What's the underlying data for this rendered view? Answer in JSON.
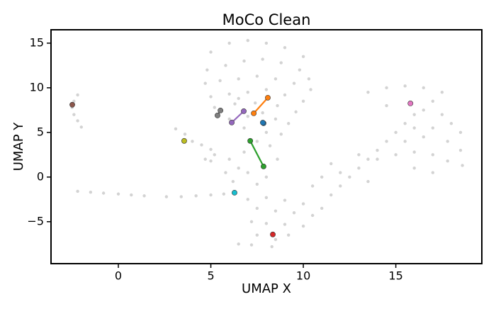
{
  "chart_data": {
    "type": "scatter",
    "title": "MoCo Clean",
    "x_label": "UMAP X",
    "y_label": "UMAP Y",
    "xlim": [
      -3.64,
      19.65
    ],
    "ylim": [
      -9.7,
      16.5
    ],
    "xticks": [
      0,
      5,
      10,
      15
    ],
    "yticks": [
      {
        "value": -5,
        "label": "−5"
      },
      0,
      5,
      10,
      15
    ],
    "background": {
      "color": "#d3d3d3",
      "x": [
        -2.2,
        -2.4,
        -2.5,
        -2.4,
        -2.2,
        -2,
        -2.2,
        -1.5,
        -0.8,
        0,
        0.7,
        1.4,
        2.6,
        3.4,
        4.2,
        5,
        5.7,
        3.1,
        3.6,
        4,
        4.5,
        5,
        5.2,
        5,
        4.7,
        5,
        6,
        7,
        8,
        9,
        10,
        4.8,
        5.8,
        6.8,
        7.8,
        8.8,
        9.8,
        10.3,
        4.7,
        5.5,
        6.5,
        7.5,
        8.5,
        9.5,
        10.4,
        5,
        6,
        7,
        8,
        9,
        10,
        5.2,
        6.3,
        7.4,
        8.6,
        9.6,
        6,
        7,
        8.5,
        9.2,
        6.8,
        8,
        8.8,
        7.5,
        8.2,
        6.5,
        7.8,
        6,
        6.5,
        7,
        6.2,
        7.5,
        8,
        8.6,
        5.8,
        6.8,
        7,
        8,
        9,
        10,
        11,
        7.5,
        8.5,
        9.5,
        10.5,
        7.2,
        8,
        9,
        10,
        7.5,
        8.5,
        9.2,
        8.3,
        6.5,
        7.2,
        11.5,
        12,
        12.5,
        13,
        13.5,
        14,
        14.5,
        15,
        15.5,
        16,
        14.5,
        13.5,
        14.5,
        15.5,
        16.5,
        17.5,
        17,
        16.5,
        17.5,
        18,
        18.5,
        17.8,
        18.5,
        18.6,
        17.8,
        17,
        16,
        15,
        14,
        13,
        12,
        11,
        10.5,
        15.5,
        16.5,
        17,
        16,
        13.5,
        16,
        17,
        11.5
      ],
      "y": [
        9.2,
        8.5,
        7.8,
        7,
        6.3,
        5.6,
        -1.6,
        -1.7,
        -1.8,
        -1.9,
        -2,
        -2.1,
        -2.2,
        -2.2,
        -2.1,
        -2,
        -1.9,
        5.4,
        4.8,
        4,
        3.6,
        3.1,
        2.5,
        1.8,
        2,
        14,
        15,
        15.3,
        15,
        14.5,
        13.5,
        12,
        12.5,
        13,
        13.2,
        12.8,
        12,
        11,
        10.5,
        10.8,
        11,
        11.3,
        11,
        10.5,
        9.8,
        9,
        9.3,
        9.5,
        9.8,
        9.2,
        8.5,
        7.8,
        8.2,
        8.3,
        8,
        7.3,
        6.5,
        6.8,
        6.5,
        6,
        5.5,
        5,
        4.8,
        4,
        3.5,
        8.8,
        7.2,
        2,
        1,
        0.5,
        -0.5,
        -0.8,
        0,
        2,
        0.5,
        2.8,
        -2.5,
        -2.3,
        -2.6,
        -3,
        -3.5,
        -3.5,
        -3.8,
        -4,
        -4.3,
        -5,
        -5.2,
        -5.3,
        -5.5,
        -6.5,
        -7,
        -6.5,
        -7.8,
        -7.5,
        -7.6,
        -2,
        -1,
        0,
        1,
        2,
        3,
        4,
        5,
        6,
        7,
        8,
        9.5,
        10,
        10.2,
        10,
        9.5,
        8.5,
        7.5,
        7,
        6,
        5,
        4,
        3,
        1.3,
        1.8,
        2.5,
        2.8,
        2.5,
        2,
        2.5,
        0.5,
        0,
        -1,
        4,
        4.5,
        5.5,
        5.5,
        -0.5,
        1,
        0.5,
        1.5
      ]
    },
    "series": [
      {
        "color": "#8c564b",
        "x": [
          -2.49
        ],
        "y": [
          8.1
        ]
      },
      {
        "color": "#bcbd22",
        "x": [
          3.56
        ],
        "y": [
          4.05
        ]
      },
      {
        "color": "#17becf",
        "x": [
          6.28
        ],
        "y": [
          -1.75
        ]
      },
      {
        "color": "#d62728",
        "x": [
          8.35
        ],
        "y": [
          -6.43
        ]
      },
      {
        "color": "#e377c2",
        "x": [
          15.79
        ],
        "y": [
          8.25
        ]
      },
      {
        "color": "#1f77b4",
        "x": [
          7.85,
          7.81
        ],
        "y": [
          6.03,
          6.1
        ]
      },
      {
        "color": "#7f7f7f",
        "x": [
          5.52,
          5.36
        ],
        "y": [
          7.46,
          6.9
        ]
      },
      {
        "color": "#9467bd",
        "x": [
          6.13,
          6.78
        ],
        "y": [
          6.11,
          7.38
        ]
      },
      {
        "color": "#ff7f0e",
        "x": [
          7.32,
          8.08
        ],
        "y": [
          7.14,
          8.89
        ]
      },
      {
        "color": "#2ca02c",
        "x": [
          7.13,
          7.85
        ],
        "y": [
          4.05,
          1.19
        ]
      }
    ]
  }
}
